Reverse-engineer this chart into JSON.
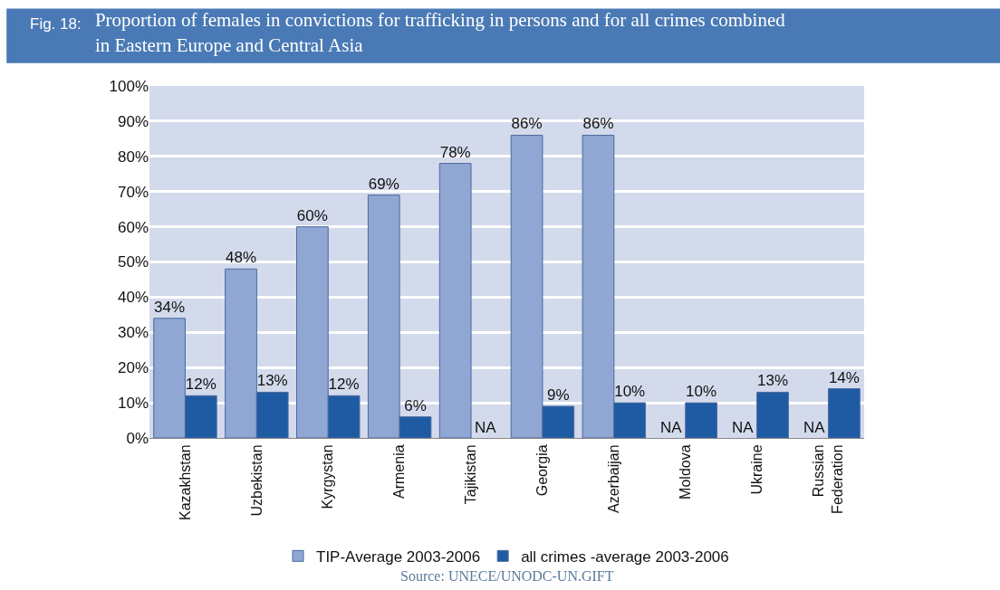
{
  "chart_data": {
    "type": "bar",
    "title": "Proportion of females in convictions for trafficking in persons and for all crimes combined in Eastern Europe and Central Asia",
    "annotations": [
      "Fig. 18:",
      "Source: UNECE/UNODC-UN.GIFT"
    ],
    "categories": [
      "Kazakhstan",
      "Uzbekistan",
      "Kyrgystan",
      "Armenia",
      "Tajikistan",
      "Georgia",
      "Azerbaijan",
      "Moldova",
      "Ukraine",
      "Russian Federation"
    ],
    "series": [
      {
        "name": "TIP-Average 2003-2006",
        "color": "#8fa7d2",
        "values": [
          34,
          48,
          60,
          69,
          78,
          86,
          86,
          null,
          null,
          null
        ],
        "value_labels": [
          "34%",
          "48%",
          "60%",
          "69%",
          "78%",
          "86%",
          "86%",
          "NA",
          "NA",
          "NA"
        ]
      },
      {
        "name": "all crimes -average 2003-2006",
        "color": "#1f5ba3",
        "values": [
          12,
          13,
          12,
          6,
          null,
          9,
          10,
          10,
          13,
          14
        ],
        "value_labels": [
          "12%",
          "13%",
          "12%",
          "6%",
          "NA",
          "9%",
          "10%",
          "10%",
          "13%",
          "14%"
        ]
      }
    ],
    "ylim": [
      0,
      100
    ],
    "yticks": [
      {
        "value": 0,
        "label": "0%"
      },
      {
        "value": 10,
        "label": "10%"
      },
      {
        "value": 20,
        "label": "20%"
      },
      {
        "value": 30,
        "label": "30%"
      },
      {
        "value": 40,
        "label": "40%"
      },
      {
        "value": 50,
        "label": "50%"
      },
      {
        "value": 60,
        "label": "60%"
      },
      {
        "value": 70,
        "label": "70%"
      },
      {
        "value": 80,
        "label": "80%"
      },
      {
        "value": 90,
        "label": "90%"
      },
      {
        "value": 100,
        "label": "100%"
      }
    ],
    "grid": "y",
    "legend": "bottom"
  }
}
